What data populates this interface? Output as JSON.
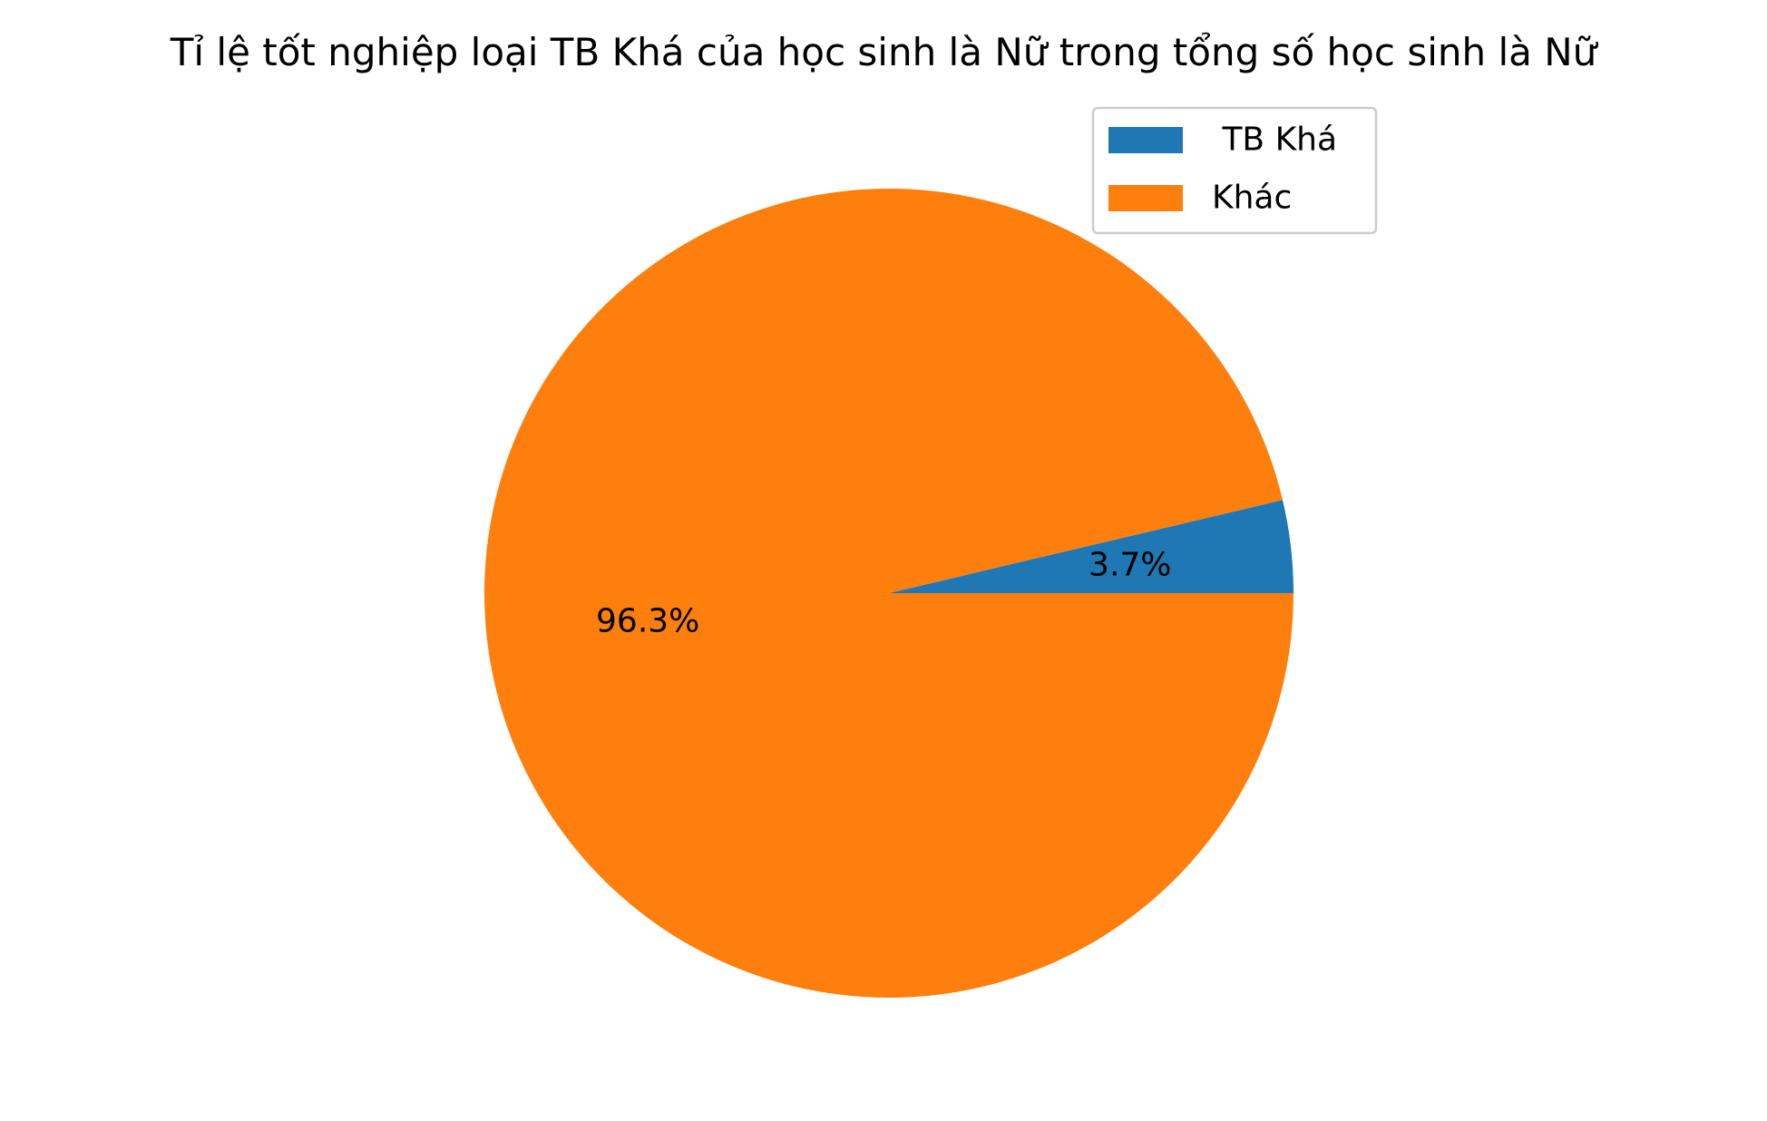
{
  "chart_data": {
    "type": "pie",
    "title": "Tỉ lệ tốt nghiệp loại  TB Khá của học sinh là Nữ trong tổng số học sinh là Nữ",
    "labels": [
      " TB Khá",
      "Khác"
    ],
    "values": [
      3.7,
      96.3
    ],
    "value_labels": [
      "3.7%",
      "96.3%"
    ],
    "colors": [
      "#1f77b4",
      "#ff7f0e"
    ],
    "start_angle_deg": 0,
    "direction": "counterclockwise",
    "legend_placement": "upper-right"
  }
}
